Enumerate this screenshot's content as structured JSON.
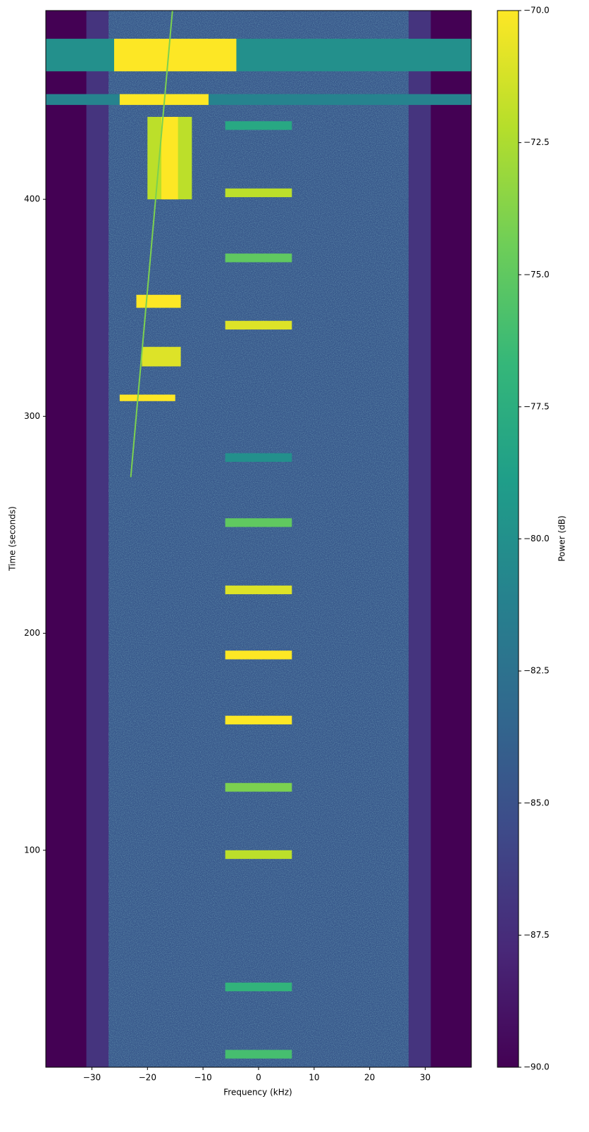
{
  "chart_data": {
    "type": "spectrogram",
    "xlabel": "Frequency (kHz)",
    "ylabel": "Time (seconds)",
    "colorbar_label": "Power (dB)",
    "colormap": "viridis",
    "xlim": [
      -38.3,
      38.3
    ],
    "ylim": [
      0,
      487
    ],
    "clim": [
      -90,
      -70
    ],
    "xticks": [
      {
        "value": -30,
        "label": "−30"
      },
      {
        "value": -20,
        "label": "−20"
      },
      {
        "value": -10,
        "label": "−10"
      },
      0,
      10,
      20,
      30
    ],
    "yticks": [
      100,
      200,
      300,
      400
    ],
    "cticks": [
      {
        "value": -90,
        "label": "−90.0"
      },
      {
        "value": -87.5,
        "label": "−87.5"
      },
      {
        "value": -85,
        "label": "−85.0"
      },
      {
        "value": -82.5,
        "label": "−82.5"
      },
      {
        "value": -80,
        "label": "−80.0"
      },
      {
        "value": -77.5,
        "label": "−77.5"
      },
      {
        "value": -75,
        "label": "−75.0"
      },
      {
        "value": -72.5,
        "label": "−72.5"
      },
      {
        "value": -70,
        "label": "−70.0"
      }
    ],
    "regions": [
      {
        "f": [
          -38.3,
          38.3
        ],
        "t": [
          0,
          487
        ],
        "power": -90
      },
      {
        "f": [
          -31,
          31
        ],
        "t": [
          0,
          487
        ],
        "power": -87
      },
      {
        "f": [
          -27,
          27
        ],
        "t": [
          0,
          487
        ],
        "power": -84.5
      },
      {
        "f": [
          -38.3,
          38.3
        ],
        "t": [
          459,
          474
        ],
        "power": -80
      },
      {
        "f": [
          -26,
          -4
        ],
        "t": [
          459,
          474
        ],
        "power": -70
      },
      {
        "f": [
          -38.3,
          38.3
        ],
        "t": [
          443.5,
          448.5
        ],
        "power": -81
      },
      {
        "f": [
          -25,
          -9
        ],
        "t": [
          443.5,
          448.5
        ],
        "power": -70
      },
      {
        "f": [
          -20,
          -12
        ],
        "t": [
          400,
          438
        ],
        "power": -72
      },
      {
        "f": [
          -17.5,
          -14.5
        ],
        "t": [
          400,
          438
        ],
        "power": -70
      },
      {
        "f": [
          -22,
          -14
        ],
        "t": [
          350,
          356
        ],
        "power": -70
      },
      {
        "f": [
          -21,
          -14
        ],
        "t": [
          323,
          332
        ],
        "power": -71
      },
      {
        "f": [
          -25,
          -15
        ],
        "t": [
          307,
          310
        ],
        "power": -70
      },
      {
        "f": [
          -6,
          6
        ],
        "t": [
          432,
          436
        ],
        "power": -78
      },
      {
        "f": [
          -6,
          6
        ],
        "t": [
          401,
          405
        ],
        "power": -72
      },
      {
        "f": [
          -6,
          6
        ],
        "t": [
          371,
          375
        ],
        "power": -75
      },
      {
        "f": [
          -6,
          6
        ],
        "t": [
          340,
          344
        ],
        "power": -71
      },
      {
        "f": [
          -6,
          6
        ],
        "t": [
          279,
          283
        ],
        "power": -80
      },
      {
        "f": [
          -6,
          6
        ],
        "t": [
          249,
          253
        ],
        "power": -75
      },
      {
        "f": [
          -6,
          6
        ],
        "t": [
          218,
          222
        ],
        "power": -71
      },
      {
        "f": [
          -6,
          6
        ],
        "t": [
          188,
          192
        ],
        "power": -70
      },
      {
        "f": [
          -6,
          6
        ],
        "t": [
          158,
          162
        ],
        "power": -70
      },
      {
        "f": [
          -6,
          6
        ],
        "t": [
          127,
          131
        ],
        "power": -74
      },
      {
        "f": [
          -6,
          6
        ],
        "t": [
          96,
          100
        ],
        "power": -72
      },
      {
        "f": [
          -6,
          6
        ],
        "t": [
          35,
          39
        ],
        "power": -77
      },
      {
        "f": [
          -6,
          6
        ],
        "t": [
          4,
          8
        ],
        "power": -76
      }
    ],
    "tracks": [
      {
        "f": [
          -15.5,
          -23
        ],
        "t": [
          487,
          272
        ],
        "power": -74
      }
    ]
  }
}
